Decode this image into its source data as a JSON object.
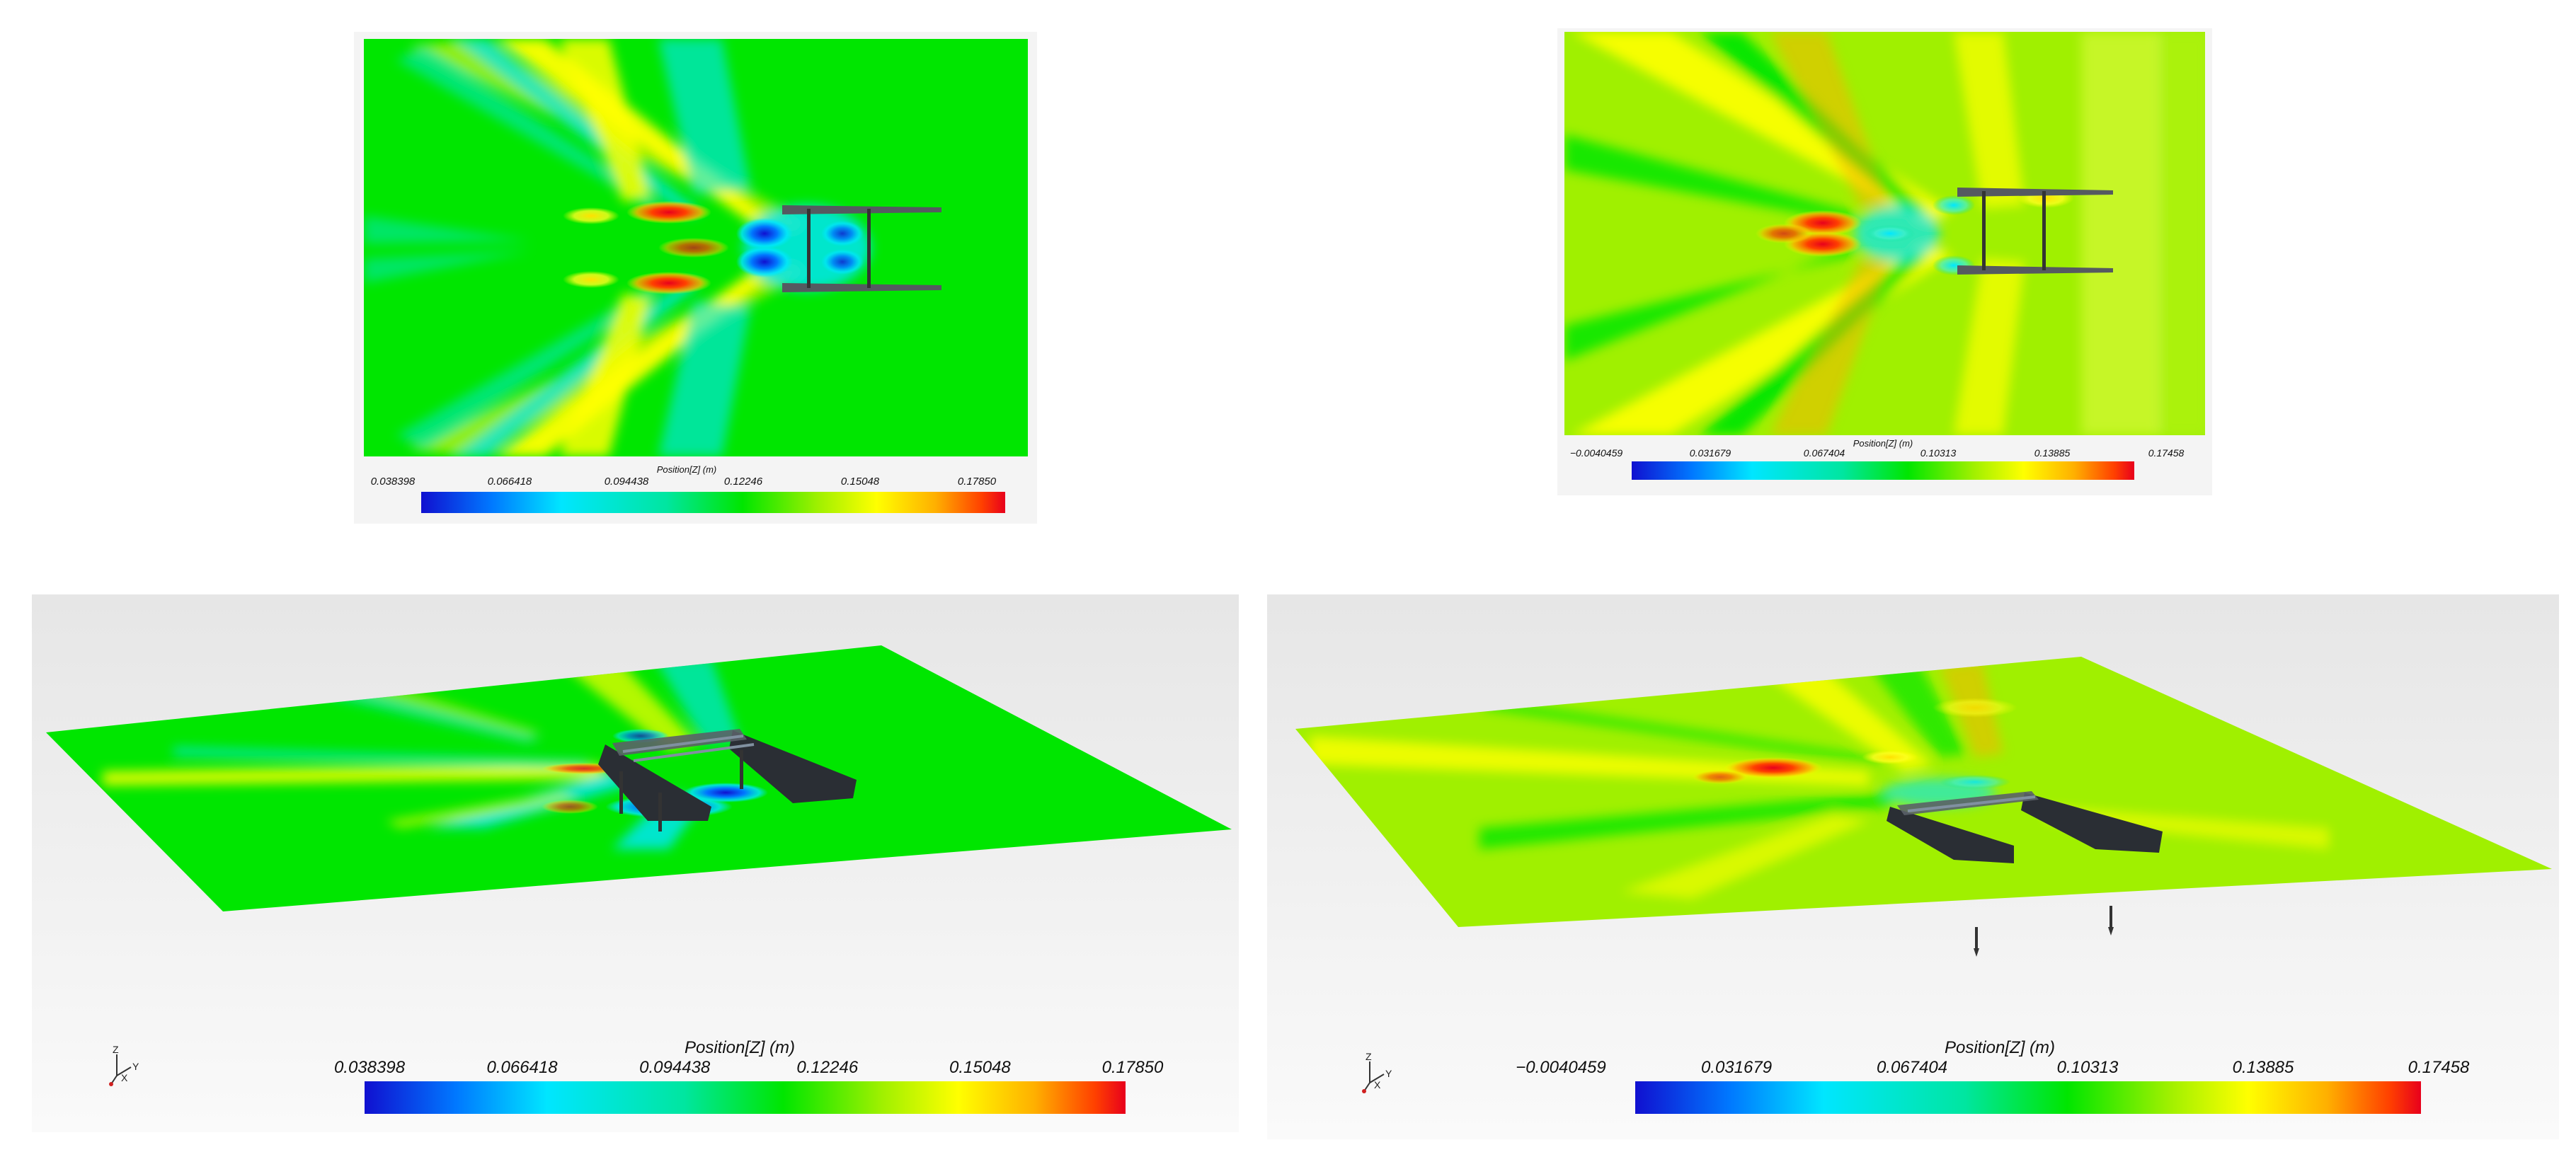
{
  "colorbar_title": "Position[Z] (m)",
  "palette": [
    "#1010d0",
    "#0078ff",
    "#00e6ff",
    "#00e070",
    "#00e600",
    "#a0f000",
    "#ffff00",
    "#ffb000",
    "#ff4000",
    "#e8001c"
  ],
  "panels": [
    {
      "id": "top-left",
      "view": "top",
      "ticks": [
        "0.038398",
        "0.066418",
        "0.094438",
        "0.12246",
        "0.15048",
        "0.17850"
      ]
    },
    {
      "id": "top-right",
      "view": "top",
      "ticks": [
        "−0.0040459",
        "0.031679",
        "0.067404",
        "0.10313",
        "0.13885",
        "0.17458"
      ]
    },
    {
      "id": "bottom-left",
      "view": "perspective",
      "axes": {
        "z": "Z",
        "x": "X",
        "y": "Y"
      },
      "ticks": [
        "0.038398",
        "0.066418",
        "0.094438",
        "0.12246",
        "0.15048",
        "0.17850"
      ]
    },
    {
      "id": "bottom-right",
      "view": "perspective",
      "axes": {
        "z": "Z",
        "x": "X",
        "y": "Y"
      },
      "ticks": [
        "−0.0040459",
        "0.031679",
        "0.067404",
        "0.10313",
        "0.13885",
        "0.17458"
      ]
    }
  ]
}
